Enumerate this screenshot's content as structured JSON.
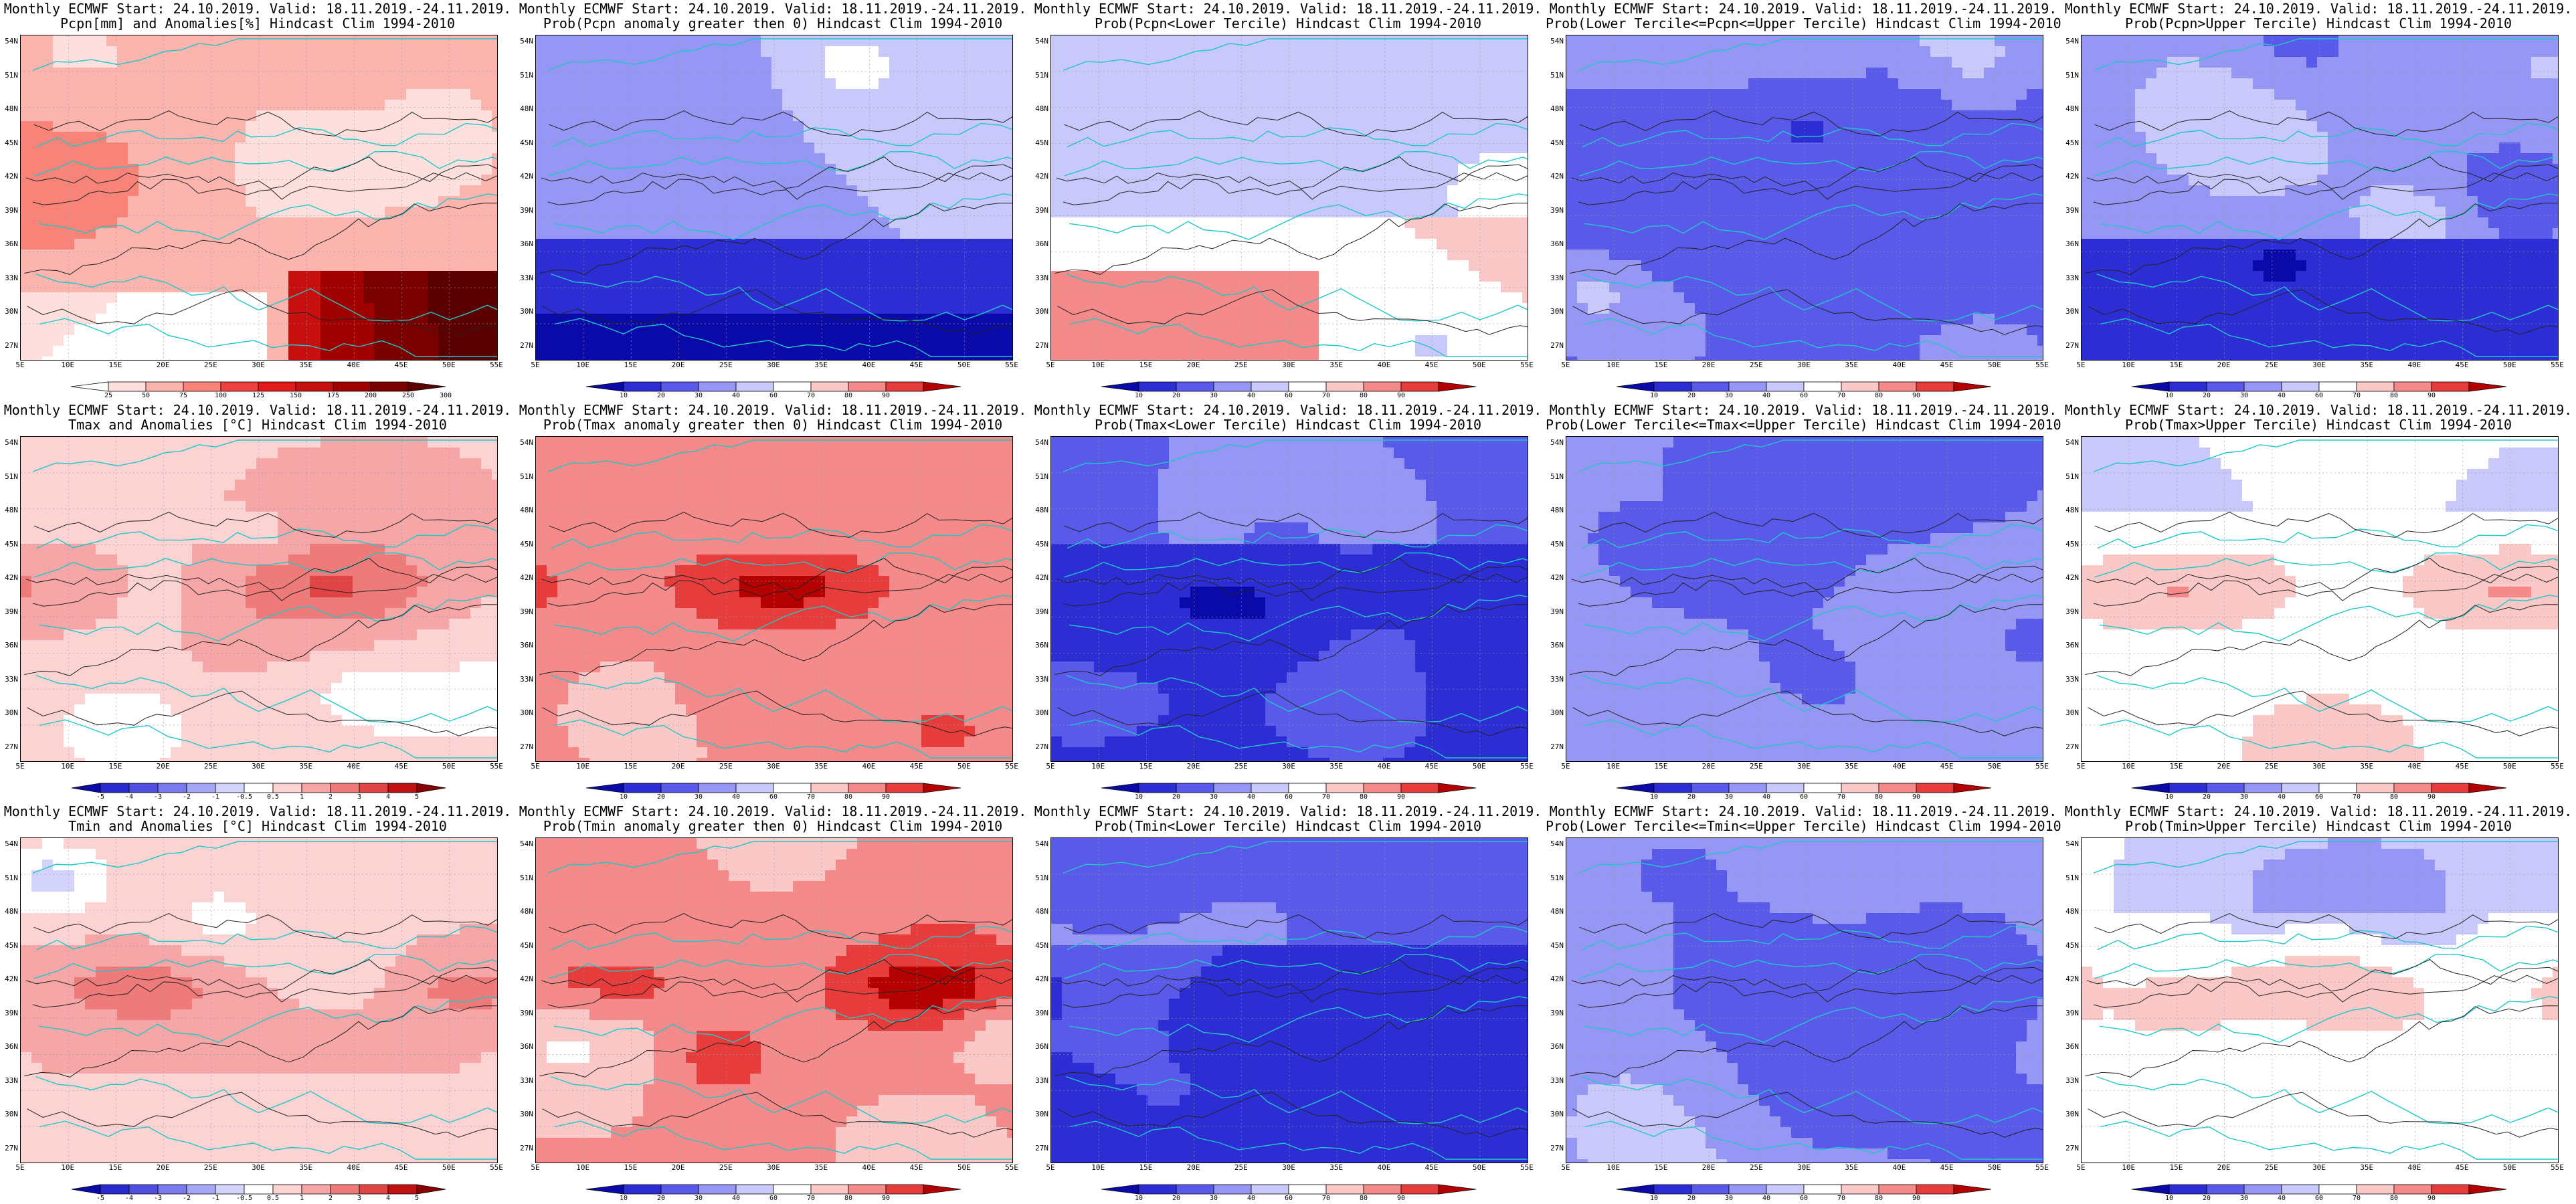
{
  "map_axes": {
    "lat_labels": [
      "54N",
      "51N",
      "48N",
      "45N",
      "42N",
      "39N",
      "36N",
      "33N",
      "30N",
      "27N"
    ],
    "lon_labels": [
      "5E",
      "10E",
      "15E",
      "20E",
      "25E",
      "30E",
      "35E",
      "40E",
      "45E",
      "50E",
      "55E"
    ]
  },
  "legends": {
    "pcpn": {
      "labels": [
        "25",
        "50",
        "75",
        "100",
        "125",
        "150",
        "175",
        "200",
        "250",
        "300"
      ],
      "colors": [
        "#ffffff",
        "#fde0dd",
        "#fbb4ae",
        "#f88379",
        "#ee4040",
        "#e31a1c",
        "#c80f10",
        "#a00000",
        "#7a0000",
        "#5a0000"
      ]
    },
    "temp": {
      "labels": [
        "-5",
        "-4",
        "-3",
        "-2",
        "-1",
        "-0.5",
        "0.5",
        "1",
        "2",
        "3",
        "4",
        "5"
      ],
      "colors": [
        "#0a0aa8",
        "#2a2acc",
        "#5050e0",
        "#7a7aee",
        "#a6a6f6",
        "#d3d3fb",
        "#ffffff",
        "#fbd3d3",
        "#f6a6a6",
        "#ee7a7a",
        "#e04444",
        "#c01010",
        "#8a0000"
      ]
    },
    "prob": {
      "labels": [
        "10",
        "20",
        "30",
        "40",
        "60",
        "70",
        "80",
        "90"
      ],
      "colors": [
        "#0a0aa8",
        "#2d2dd4",
        "#5a5aea",
        "#9696f4",
        "#c8c8fa",
        "#ffffff",
        "#fbc8c8",
        "#f48a8a",
        "#e63c3c",
        "#b40000"
      ]
    }
  },
  "panels": [
    {
      "title1": "Monthly ECMWF Start: 24.10.2019. Valid: 18.11.2019.-24.11.2019.",
      "title2": "Pcpn[mm] and Anomalies[%] Hindcast Clim 1994-2010",
      "scheme": "pcpn",
      "legend": "pcpn",
      "seed": 11
    },
    {
      "title1": "Monthly ECMWF Start: 24.10.2019. Valid: 18.11.2019.-24.11.2019.",
      "title2": "Prob(Pcpn anomaly greater then 0) Hindcast Clim 1994-2010",
      "scheme": "pprob_gt",
      "legend": "prob",
      "seed": 12
    },
    {
      "title1": "Monthly ECMWF Start: 24.10.2019. Valid: 18.11.2019.-24.11.2019.",
      "title2": "Prob(Pcpn<Lower Tercile) Hindcast Clim 1994-2010",
      "scheme": "pprob_low",
      "legend": "prob",
      "seed": 13
    },
    {
      "title1": "Monthly ECMWF Start: 24.10.2019. Valid: 18.11.2019.-24.11.2019.",
      "title2": "Prob(Lower Tercile<=Pcpn<=Upper Tercile) Hindcast Clim 1994-2010",
      "scheme": "pprob_mid",
      "legend": "prob",
      "seed": 14
    },
    {
      "title1": "Monthly ECMWF Start: 24.10.2019. Valid: 18.11.2019.-24.11.2019.",
      "title2": "Prob(Pcpn>Upper Tercile) Hindcast Clim 1994-2010",
      "scheme": "pprob_up",
      "legend": "prob",
      "seed": 15
    },
    {
      "title1": "Monthly ECMWF Start: 24.10.2019. Valid: 18.11.2019.-24.11.2019.",
      "title2": "Tmax and Anomalies [°C] Hindcast Clim 1994-2010",
      "scheme": "tanom",
      "legend": "temp",
      "seed": 21
    },
    {
      "title1": "Monthly ECMWF Start: 24.10.2019. Valid: 18.11.2019.-24.11.2019.",
      "title2": "Prob(Tmax anomaly greater then 0) Hindcast Clim 1994-2010",
      "scheme": "tprob_gt",
      "legend": "prob",
      "seed": 22
    },
    {
      "title1": "Monthly ECMWF Start: 24.10.2019. Valid: 18.11.2019.-24.11.2019.",
      "title2": "Prob(Tmax<Lower Tercile) Hindcast Clim 1994-2010",
      "scheme": "tprob_low",
      "legend": "prob",
      "seed": 23
    },
    {
      "title1": "Monthly ECMWF Start: 24.10.2019. Valid: 18.11.2019.-24.11.2019.",
      "title2": "Prob(Lower Tercile<=Tmax<=Upper Tercile) Hindcast Clim 1994-2010",
      "scheme": "tprob_mid",
      "legend": "prob",
      "seed": 24
    },
    {
      "title1": "Monthly ECMWF Start: 24.10.2019. Valid: 18.11.2019.-24.11.2019.",
      "title2": "Prob(Tmax>Upper Tercile) Hindcast Clim 1994-2010",
      "scheme": "tprob_up",
      "legend": "prob",
      "seed": 25
    },
    {
      "title1": "Monthly ECMWF Start: 24.10.2019. Valid: 18.11.2019.-24.11.2019.",
      "title2": "Tmin and Anomalies [°C] Hindcast Clim 1994-2010",
      "scheme": "tanom",
      "legend": "temp",
      "seed": 31
    },
    {
      "title1": "Monthly ECMWF Start: 24.10.2019. Valid: 18.11.2019.-24.11.2019.",
      "title2": "Prob(Tmin anomaly greater then 0) Hindcast Clim 1994-2010",
      "scheme": "tprob_gt",
      "legend": "prob",
      "seed": 32
    },
    {
      "title1": "Monthly ECMWF Start: 24.10.2019. Valid: 18.11.2019.-24.11.2019.",
      "title2": "Prob(Tmin<Lower Tercile) Hindcast Clim 1994-2010",
      "scheme": "tprob_low",
      "legend": "prob",
      "seed": 33
    },
    {
      "title1": "Monthly ECMWF Start: 24.10.2019. Valid: 18.11.2019.-24.11.2019.",
      "title2": "Prob(Lower Tercile<=Tmin<=Upper Tercile) Hindcast Clim 1994-2010",
      "scheme": "tprob_mid",
      "legend": "prob",
      "seed": 34
    },
    {
      "title1": "Monthly ECMWF Start: 24.10.2019. Valid: 18.11.2019.-24.11.2019.",
      "title2": "Prob(Tmin>Upper Tercile) Hindcast Clim 1994-2010",
      "scheme": "tprob_up",
      "legend": "prob",
      "seed": 35
    }
  ]
}
